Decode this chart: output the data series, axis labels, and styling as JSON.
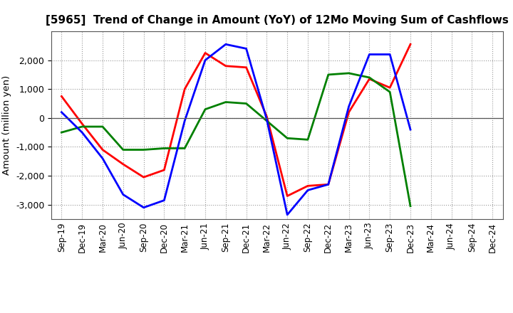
{
  "title": "[5965]  Trend of Change in Amount (YoY) of 12Mo Moving Sum of Cashflows",
  "ylabel": "Amount (million yen)",
  "x_labels": [
    "Sep-19",
    "Dec-19",
    "Mar-20",
    "Jun-20",
    "Sep-20",
    "Dec-20",
    "Mar-21",
    "Jun-21",
    "Sep-21",
    "Dec-21",
    "Mar-22",
    "Jun-22",
    "Sep-22",
    "Dec-22",
    "Mar-23",
    "Jun-23",
    "Sep-23",
    "Dec-23",
    "Mar-24",
    "Jun-24",
    "Sep-24",
    "Dec-24"
  ],
  "operating": [
    750,
    -200,
    -1100,
    -1600,
    -2050,
    -1800,
    1000,
    2250,
    1800,
    1750,
    50,
    -2700,
    -2350,
    -2300,
    200,
    1350,
    1050,
    2550,
    null,
    null,
    null,
    null
  ],
  "investing": [
    -500,
    -300,
    -300,
    -1100,
    -1100,
    -1050,
    -1050,
    300,
    550,
    500,
    -100,
    -700,
    -750,
    1500,
    1550,
    1400,
    900,
    -3050,
    null,
    null,
    null,
    null
  ],
  "free": [
    200,
    -500,
    -1400,
    -2650,
    -3100,
    -2850,
    -100,
    2000,
    2550,
    2400,
    -50,
    -3350,
    -2500,
    -2300,
    400,
    2200,
    2200,
    -400,
    null,
    null,
    null,
    null
  ],
  "operating_color": "#ff0000",
  "investing_color": "#008000",
  "free_color": "#0000ff",
  "ylim": [
    -3500,
    3000
  ],
  "yticks": [
    -3000,
    -2000,
    -1000,
    0,
    1000,
    2000
  ],
  "grid_color": "#999999",
  "bg_color": "#ffffff"
}
